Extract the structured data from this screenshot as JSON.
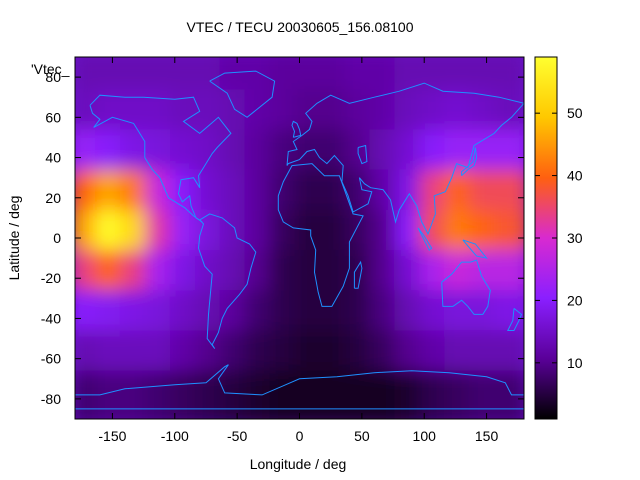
{
  "chart_data": {
    "type": "heatmap",
    "title": "VTEC / TECU 20030605_156.08100",
    "xlabel": "Longitude / deg",
    "ylabel": "Latitude / deg",
    "series_key_label": "'Vtec_",
    "xlim": [
      -180,
      180
    ],
    "ylim": [
      -90,
      90
    ],
    "x_ticks": [
      -150,
      -100,
      -50,
      0,
      50,
      100,
      150
    ],
    "y_ticks": [
      -80,
      -60,
      -40,
      -20,
      0,
      20,
      40,
      60,
      80
    ],
    "colorbar": {
      "min": 1,
      "max": 59,
      "ticks": [
        10,
        20,
        30,
        40,
        50
      ]
    },
    "colormap": [
      "#000000",
      "#5a0099",
      "#8a1fff",
      "#d82ad0",
      "#ff6010",
      "#ffc800",
      "#ffff30"
    ],
    "coastline_color": "#1e90ff",
    "vtec_grid": {
      "lon_step_deg": 20,
      "lat_step_deg": 20,
      "lon_centers": [
        -170,
        -150,
        -130,
        -110,
        -90,
        -70,
        -50,
        -30,
        -10,
        10,
        30,
        50,
        70,
        90,
        110,
        130,
        150,
        170
      ],
      "lat_centers": [
        80,
        60,
        40,
        20,
        0,
        -20,
        -40,
        -60,
        -80
      ],
      "values": [
        [
          13,
          13,
          13,
          13,
          13,
          13,
          12,
          12,
          11,
          11,
          11,
          12,
          12,
          13,
          13,
          13,
          13,
          13
        ],
        [
          14,
          15,
          15,
          15,
          14,
          14,
          13,
          12,
          11,
          10,
          10,
          11,
          12,
          14,
          15,
          16,
          15,
          14
        ],
        [
          22,
          20,
          18,
          17,
          16,
          15,
          13,
          11,
          9,
          8,
          8,
          10,
          13,
          16,
          20,
          22,
          22,
          22
        ],
        [
          40,
          46,
          42,
          28,
          20,
          16,
          14,
          11,
          8,
          6,
          6,
          8,
          12,
          18,
          34,
          40,
          36,
          36
        ],
        [
          46,
          58,
          52,
          32,
          22,
          17,
          14,
          11,
          7,
          5,
          5,
          7,
          10,
          20,
          36,
          42,
          40,
          38
        ],
        [
          34,
          40,
          34,
          24,
          18,
          15,
          13,
          10,
          6,
          5,
          5,
          6,
          10,
          16,
          24,
          28,
          26,
          26
        ],
        [
          20,
          19,
          18,
          17,
          15,
          13,
          11,
          8,
          6,
          5,
          5,
          6,
          9,
          13,
          16,
          17,
          17,
          18
        ],
        [
          13,
          14,
          14,
          14,
          12,
          10,
          8,
          6,
          5,
          4,
          4,
          5,
          7,
          10,
          12,
          13,
          13,
          13
        ],
        [
          8,
          9,
          9,
          8,
          7,
          6,
          5,
          4,
          3,
          3,
          3,
          3,
          3,
          4,
          6,
          7,
          8,
          8
        ]
      ]
    }
  }
}
